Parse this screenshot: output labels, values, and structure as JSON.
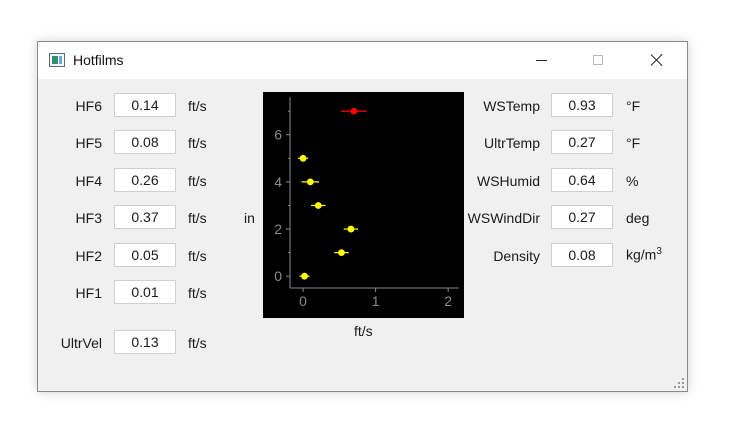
{
  "window": {
    "title": "Hotfilms"
  },
  "left_fields": [
    {
      "label": "HF6",
      "value": "0.14",
      "unit": "ft/s"
    },
    {
      "label": "HF5",
      "value": "0.08",
      "unit": "ft/s"
    },
    {
      "label": "HF4",
      "value": "0.26",
      "unit": "ft/s"
    },
    {
      "label": "HF3",
      "value": "0.37",
      "unit": "ft/s"
    },
    {
      "label": "HF2",
      "value": "0.05",
      "unit": "ft/s"
    },
    {
      "label": "HF1",
      "value": "0.01",
      "unit": "ft/s"
    },
    {
      "label": "UltrVel",
      "value": "0.13",
      "unit": "ft/s"
    }
  ],
  "right_fields": [
    {
      "label": "WSTemp",
      "value": "0.93",
      "unit": "°F"
    },
    {
      "label": "UltrTemp",
      "value": "0.27",
      "unit": "°F"
    },
    {
      "label": "WSHumid",
      "value": "0.64",
      "unit": "%"
    },
    {
      "label": "WSWindDir",
      "value": "0.27",
      "unit": "deg"
    },
    {
      "label": "Density",
      "value": "0.08",
      "unit_base": "kg/m",
      "unit_sup": "3"
    }
  ],
  "chart_data": {
    "type": "scatter",
    "xlabel": "ft/s",
    "ylabel": "in",
    "xlim": [
      -0.18,
      2.15
    ],
    "ylim": [
      -0.5,
      7.6
    ],
    "x_ticks": [
      "0",
      "1",
      "2"
    ],
    "x_tick_values": [
      0,
      1,
      2
    ],
    "y_ticks": [
      "0",
      "2",
      "4",
      "6"
    ],
    "y_tick_values": [
      0,
      2,
      4,
      6
    ],
    "grid": false,
    "points": [
      {
        "x": 0.02,
        "y": 0,
        "err": 0.07,
        "color": "#ffff00"
      },
      {
        "x": 0.53,
        "y": 1,
        "err": 0.1,
        "color": "#ffff00"
      },
      {
        "x": 0.66,
        "y": 2,
        "err": 0.1,
        "color": "#ffff00"
      },
      {
        "x": 0.21,
        "y": 3,
        "err": 0.1,
        "color": "#ffff00"
      },
      {
        "x": 0.1,
        "y": 4,
        "err": 0.12,
        "color": "#ffff00"
      },
      {
        "x": 0.0,
        "y": 5,
        "err": 0.07,
        "color": "#ffff00"
      },
      {
        "x": 0.7,
        "y": 7,
        "err": 0.18,
        "color": "#ff0000"
      }
    ],
    "axis_color": "#8a8a8a"
  }
}
